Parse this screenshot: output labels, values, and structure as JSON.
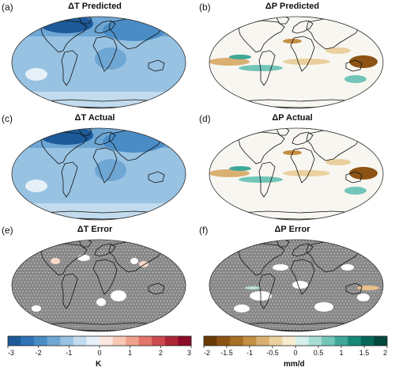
{
  "panels": [
    {
      "letter": "(a)",
      "title": "ΔT Predicted",
      "variable": "temperature"
    },
    {
      "letter": "(b)",
      "title": "ΔP Predicted",
      "variable": "precipitation"
    },
    {
      "letter": "(c)",
      "title": "ΔT Actual",
      "variable": "temperature"
    },
    {
      "letter": "(d)",
      "title": "ΔP Actual",
      "variable": "precipitation"
    },
    {
      "letter": "(e)",
      "title": "ΔT Error",
      "variable": "temperature"
    },
    {
      "letter": "(f)",
      "title": "ΔP Error",
      "variable": "precipitation"
    }
  ],
  "colorbars": {
    "temperature": {
      "unit": "K",
      "ticks": [
        "-3",
        "-2",
        "-1",
        "0",
        "1",
        "2",
        "3"
      ],
      "colors": [
        "#1c5a99",
        "#2f73b6",
        "#4a8dc6",
        "#6ea6d4",
        "#98c2e2",
        "#c2dbee",
        "#e6f0f8",
        "#fbe7df",
        "#f6c8b4",
        "#efa18b",
        "#e2746a",
        "#cc4a4e",
        "#ad2638",
        "#8c0b29"
      ]
    },
    "precipitation": {
      "unit": "mm/d",
      "ticks": [
        "-2",
        "-1.5",
        "-1",
        "-0.5",
        "0",
        "0.5",
        "1",
        "1.5",
        "2"
      ],
      "colors": [
        "#6b3a09",
        "#8c5314",
        "#a86f27",
        "#c38f45",
        "#d9b071",
        "#ead09e",
        "#f6ead0",
        "#d6efec",
        "#a8ddd5",
        "#73c5b9",
        "#3fa898",
        "#158876",
        "#05665a",
        "#00473d"
      ]
    }
  }
}
